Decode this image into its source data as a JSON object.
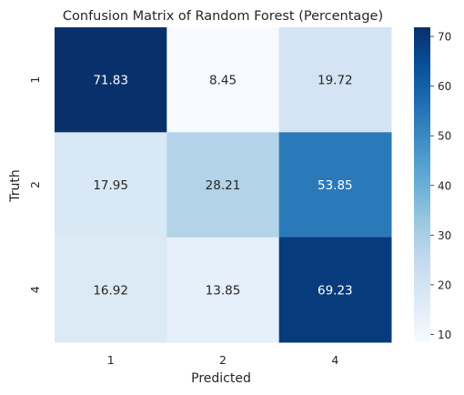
{
  "chart_data": {
    "type": "heatmap",
    "title": "Confusion Matrix of Random Forest (Percentage)",
    "xlabel": "Predicted",
    "ylabel": "Truth",
    "x_categories": [
      "1",
      "2",
      "4"
    ],
    "y_categories": [
      "1",
      "2",
      "4"
    ],
    "values": [
      [
        71.83,
        8.45,
        19.72
      ],
      [
        17.95,
        28.21,
        53.85
      ],
      [
        16.92,
        13.85,
        69.23
      ]
    ],
    "value_labels": [
      [
        "71.83",
        "8.45",
        "19.72"
      ],
      [
        "17.95",
        "28.21",
        "53.85"
      ],
      [
        "16.92",
        "13.85",
        "69.23"
      ]
    ],
    "colormap": "Blues",
    "color_range": [
      8.45,
      71.83
    ],
    "colorbar_ticks": [
      10,
      20,
      30,
      40,
      50,
      60,
      70
    ],
    "colorbar_tick_labels": [
      "10",
      "20",
      "30",
      "40",
      "50",
      "60",
      "70"
    ]
  }
}
